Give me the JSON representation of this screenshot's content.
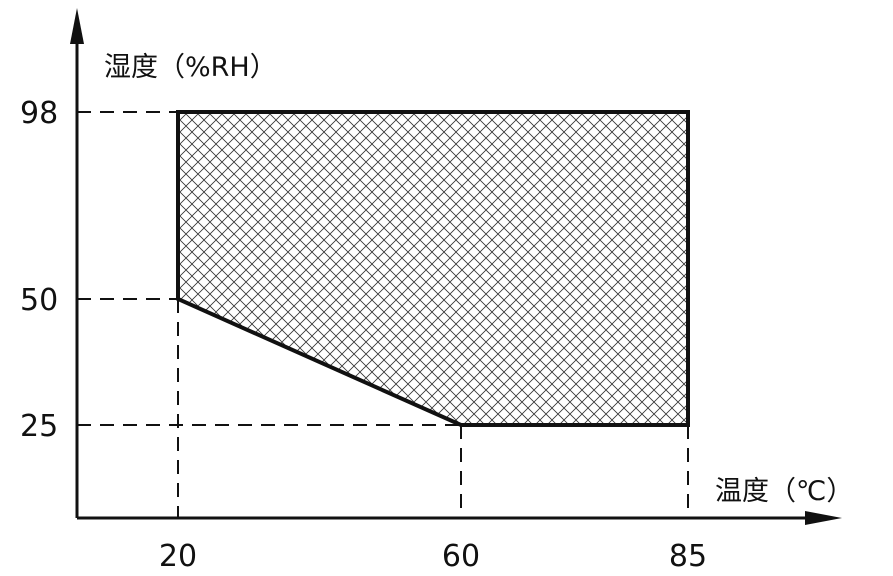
{
  "chart_data": {
    "type": "area",
    "xlabel": "温度（℃）",
    "ylabel": "湿度（%RH）",
    "x_ticks": [
      20,
      60,
      85
    ],
    "y_ticks": [
      25,
      50,
      98
    ],
    "region": {
      "fill": "crosshatch",
      "points": [
        [
          20,
          98
        ],
        [
          85,
          98
        ],
        [
          85,
          25
        ],
        [
          60,
          25
        ],
        [
          20,
          50
        ]
      ]
    },
    "guides": "dashed",
    "colors": {
      "line": "#111111",
      "hatch": "#333333"
    }
  }
}
